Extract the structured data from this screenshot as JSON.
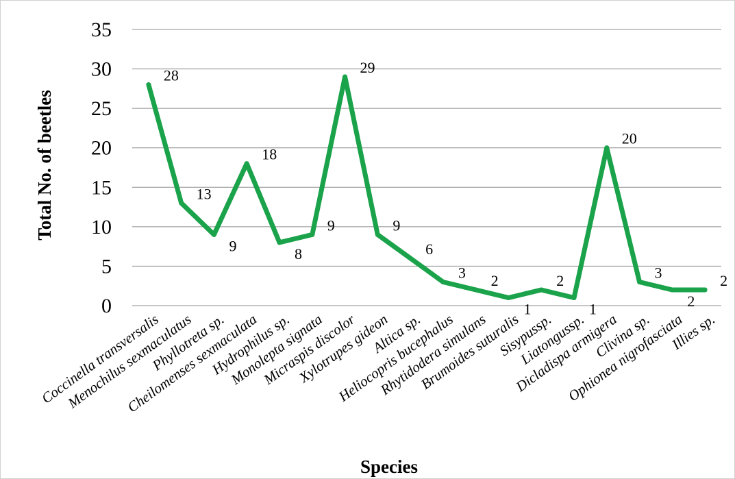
{
  "chart_data": {
    "type": "line",
    "xlabel": "Species",
    "ylabel": "Total No. of beetles",
    "ylim": [
      0,
      35
    ],
    "yticks": [
      0,
      5,
      10,
      15,
      20,
      25,
      30,
      35
    ],
    "grid": true,
    "legend": "none",
    "line_color": "#1aa34a",
    "categories": [
      "Coccinella transversalis",
      "Menochilus sexmaculatus",
      "Phyllotreta sp.",
      "Cheilomenses sexmaculata",
      "Hydrophilus sp.",
      "Monolepta signata",
      "Micraspis discolor",
      "Xylotrupes gideon",
      "Altica sp.",
      "Heliocopris bucephalus",
      "Rhytidodera simulans",
      "Brumoides suturalis",
      "Sisypussp.",
      "Liatongussp.",
      "Dicladispa armigera",
      "Clivina sp.",
      "Ophionea nigrofasciata",
      "Illies sp."
    ],
    "values": [
      28,
      13,
      9,
      18,
      8,
      9,
      29,
      9,
      6,
      3,
      2,
      1,
      2,
      1,
      20,
      3,
      2,
      2
    ]
  }
}
